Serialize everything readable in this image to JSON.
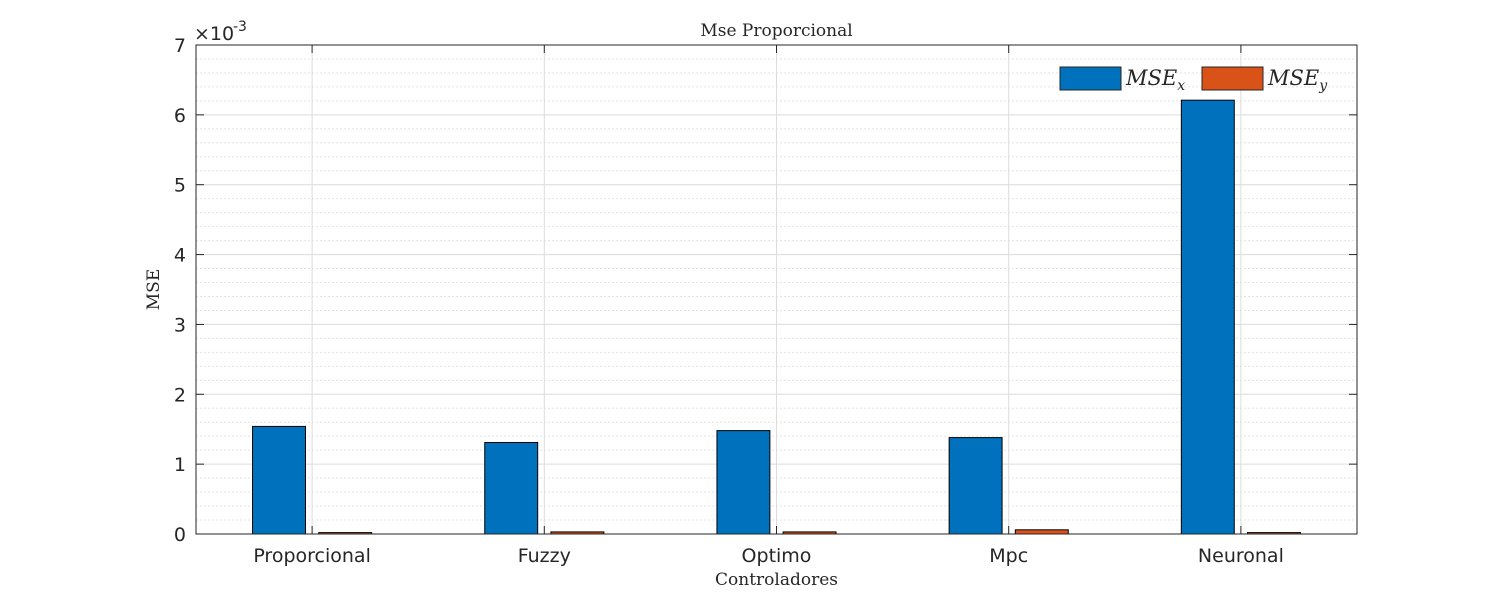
{
  "chart_data": {
    "type": "bar",
    "title": "Mse Proporcional",
    "xlabel": "Controladores",
    "ylabel": "MSE",
    "categories": [
      "Proporcional",
      "Fuzzy",
      "Optimo",
      "Mpc",
      "Neuronal"
    ],
    "series": [
      {
        "name": "MSE_x",
        "label_main": "MSE",
        "label_sub": "x",
        "color": "#0072BD",
        "values": [
          0.00154,
          0.00131,
          0.00148,
          0.00138,
          0.00621
        ]
      },
      {
        "name": "MSE_y",
        "label_main": "MSE",
        "label_sub": "y",
        "color": "#D95319",
        "values": [
          2e-05,
          3e-05,
          3e-05,
          6e-05,
          2e-05
        ]
      }
    ],
    "ylim": [
      0,
      0.007
    ],
    "yticks": [
      0,
      1,
      2,
      3,
      4,
      5,
      6,
      7
    ],
    "y_exponent_label": "×10",
    "y_exponent_power": "-3",
    "grid": true,
    "minor_grid": true,
    "legend_position": "top-right"
  }
}
